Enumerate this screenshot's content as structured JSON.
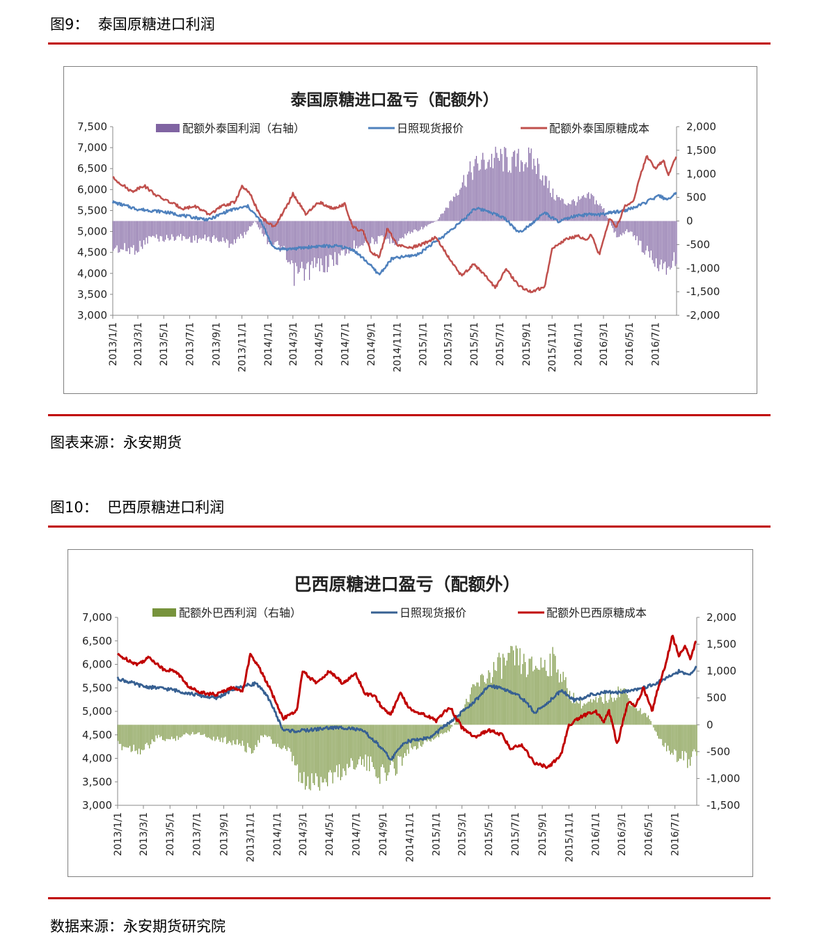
{
  "figure1": {
    "title": "图9：  泰国原糖进口利润",
    "source": "图表来源：永安期货"
  },
  "figure2": {
    "title": "图10：  巴西原糖进口利润",
    "source": "数据来源：永安期货研究院"
  },
  "chart_data": [
    {
      "type": "bar+line",
      "title": "泰国原糖进口盈亏（配额外）",
      "legend": [
        "配额外泰国利润（右轴）",
        "日照现货报价",
        "配额外泰国原糖成本"
      ],
      "legend_position": "top",
      "colors": {
        "bar": "#8064a2",
        "spot": "#4f81bd",
        "cost": "#c0504d"
      },
      "x_ticks": [
        "2013/1/1",
        "2013/3/1",
        "2013/5/1",
        "2013/7/1",
        "2013/9/1",
        "2013/11/1",
        "2014/1/1",
        "2014/3/1",
        "2014/5/1",
        "2014/7/1",
        "2014/9/1",
        "2014/11/1",
        "2015/1/1",
        "2015/3/1",
        "2015/5/1",
        "2015/7/1",
        "2015/9/1",
        "2015/11/1",
        "2016/1/1",
        "2016/3/1",
        "2016/5/1",
        "2016/7/1"
      ],
      "x_range": [
        "2013/1/1",
        "2016/8/20"
      ],
      "y_left": {
        "min": 3000,
        "max": 7500,
        "step": 500
      },
      "y_left_ticks": [
        "3,000",
        "3,500",
        "4,000",
        "4,500",
        "5,000",
        "5,500",
        "6,000",
        "6,500",
        "7,000",
        "7,500"
      ],
      "y_right": {
        "min": -2000,
        "max": 2000,
        "step": 500
      },
      "y_right_ticks": [
        "-2,000",
        "-1,500",
        "-1,000",
        "-500",
        "0",
        "500",
        "1,000",
        "1,500",
        "2,000"
      ],
      "spot": [
        [
          "2013/1/1",
          5700
        ],
        [
          "2013/3/1",
          5530
        ],
        [
          "2013/5/1",
          5470
        ],
        [
          "2013/7/1",
          5350
        ],
        [
          "2013/8/15",
          5280
        ],
        [
          "2013/10/1",
          5500
        ],
        [
          "2013/11/15",
          5600
        ],
        [
          "2013/12/15",
          5250
        ],
        [
          "2014/1/15",
          4600
        ],
        [
          "2014/2/15",
          4580
        ],
        [
          "2014/3/15",
          4600
        ],
        [
          "2014/5/1",
          4650
        ],
        [
          "2014/6/15",
          4650
        ],
        [
          "2014/7/20",
          4570
        ],
        [
          "2014/8/20",
          4300
        ],
        [
          "2014/9/20",
          3970
        ],
        [
          "2014/10/20",
          4350
        ],
        [
          "2014/11/20",
          4400
        ],
        [
          "2014/12/20",
          4450
        ],
        [
          "2015/1/15",
          4650
        ],
        [
          "2015/2/15",
          4860
        ],
        [
          "2015/3/15",
          5100
        ],
        [
          "2015/4/10",
          5300
        ],
        [
          "2015/5/1",
          5550
        ],
        [
          "2015/6/1",
          5500
        ],
        [
          "2015/7/15",
          5300
        ],
        [
          "2015/8/15",
          4970
        ],
        [
          "2015/9/15",
          5200
        ],
        [
          "2015/10/15",
          5450
        ],
        [
          "2015/11/15",
          5230
        ],
        [
          "2015/12/20",
          5350
        ],
        [
          "2016/1/20",
          5400
        ],
        [
          "2016/2/20",
          5400
        ],
        [
          "2016/3/20",
          5450
        ],
        [
          "2016/4/20",
          5500
        ],
        [
          "2016/5/20",
          5600
        ],
        [
          "2016/6/20",
          5750
        ],
        [
          "2016/7/10",
          5850
        ],
        [
          "2016/7/20",
          5800
        ],
        [
          "2016/8/1",
          5780
        ],
        [
          "2016/8/10",
          5800
        ],
        [
          "2016/8/20",
          5980
        ]
      ],
      "cost": [
        [
          "2013/1/1",
          6280
        ],
        [
          "2013/2/15",
          5950
        ],
        [
          "2013/3/15",
          6100
        ],
        [
          "2013/4/15",
          5850
        ],
        [
          "2013/5/15",
          5700
        ],
        [
          "2013/6/15",
          5550
        ],
        [
          "2013/7/15",
          5600
        ],
        [
          "2013/8/15",
          5400
        ],
        [
          "2013/9/15",
          5600
        ],
        [
          "2013/10/15",
          5700
        ],
        [
          "2013/11/1",
          6070
        ],
        [
          "2013/11/20",
          5900
        ],
        [
          "2013/12/15",
          5350
        ],
        [
          "2014/1/15",
          5100
        ],
        [
          "2014/2/15",
          5600
        ],
        [
          "2014/3/1",
          5900
        ],
        [
          "2014/4/1",
          5400
        ],
        [
          "2014/5/1",
          5700
        ],
        [
          "2014/6/1",
          5550
        ],
        [
          "2014/7/1",
          5650
        ],
        [
          "2014/7/20",
          5100
        ],
        [
          "2014/8/15",
          4980
        ],
        [
          "2014/9/1",
          4500
        ],
        [
          "2014/9/20",
          4370
        ],
        [
          "2014/10/10",
          5070
        ],
        [
          "2014/11/1",
          4680
        ],
        [
          "2014/12/1",
          4600
        ],
        [
          "2015/1/1",
          4700
        ],
        [
          "2015/2/1",
          4870
        ],
        [
          "2015/3/1",
          4400
        ],
        [
          "2015/4/1",
          3950
        ],
        [
          "2015/5/1",
          4220
        ],
        [
          "2015/6/1",
          3900
        ],
        [
          "2015/6/20",
          3650
        ],
        [
          "2015/7/15",
          4100
        ],
        [
          "2015/8/15",
          3700
        ],
        [
          "2015/9/15",
          3550
        ],
        [
          "2015/10/15",
          3700
        ],
        [
          "2015/11/1",
          4600
        ],
        [
          "2015/12/1",
          4800
        ],
        [
          "2016/1/1",
          4900
        ],
        [
          "2016/1/20",
          4800
        ],
        [
          "2016/2/1",
          4920
        ],
        [
          "2016/2/20",
          4450
        ],
        [
          "2016/3/15",
          5300
        ],
        [
          "2016/4/1",
          5100
        ],
        [
          "2016/4/20",
          5600
        ],
        [
          "2016/5/10",
          5700
        ],
        [
          "2016/5/20",
          6100
        ],
        [
          "2016/6/10",
          6800
        ],
        [
          "2016/7/1",
          6500
        ],
        [
          "2016/7/20",
          6700
        ],
        [
          "2016/8/1",
          6350
        ],
        [
          "2016/8/20",
          6800
        ]
      ],
      "bar": [
        [
          "2013/1/1",
          -600
        ],
        [
          "2013/2/1",
          -650
        ],
        [
          "2013/3/1",
          -600
        ],
        [
          "2013/4/1",
          -350
        ],
        [
          "2013/5/1",
          -400
        ],
        [
          "2013/6/1",
          -350
        ],
        [
          "2013/7/1",
          -400
        ],
        [
          "2013/8/1",
          -400
        ],
        [
          "2013/9/1",
          -400
        ],
        [
          "2013/10/1",
          -500
        ],
        [
          "2013/11/1",
          -350
        ],
        [
          "2013/12/1",
          0
        ],
        [
          "2014/1/1",
          -450
        ],
        [
          "2014/2/1",
          -600
        ],
        [
          "2014/3/1",
          -1200
        ],
        [
          "2014/4/1",
          -1100
        ],
        [
          "2014/5/1",
          -1000
        ],
        [
          "2014/6/1",
          -900
        ],
        [
          "2014/7/1",
          -700
        ],
        [
          "2014/8/1",
          -500
        ],
        [
          "2014/9/1",
          -450
        ],
        [
          "2014/10/1",
          -400
        ],
        [
          "2014/11/1",
          -450
        ],
        [
          "2014/12/1",
          -250
        ],
        [
          "2015/1/1",
          -150
        ],
        [
          "2015/2/1",
          0
        ],
        [
          "2015/3/1",
          350
        ],
        [
          "2015/4/1",
          850
        ],
        [
          "2015/5/1",
          1200
        ],
        [
          "2015/6/1",
          1350
        ],
        [
          "2015/7/1",
          1400
        ],
        [
          "2015/8/1",
          1300
        ],
        [
          "2015/9/1",
          1400
        ],
        [
          "2015/10/1",
          1200
        ],
        [
          "2015/11/1",
          600
        ],
        [
          "2015/12/1",
          400
        ],
        [
          "2016/1/1",
          450
        ],
        [
          "2016/2/1",
          550
        ],
        [
          "2016/3/1",
          250
        ],
        [
          "2016/4/1",
          -350
        ],
        [
          "2016/5/1",
          -200
        ],
        [
          "2016/6/1",
          -600
        ],
        [
          "2016/7/1",
          -900
        ],
        [
          "2016/8/1",
          -1000
        ],
        [
          "2016/8/20",
          -800
        ]
      ]
    },
    {
      "type": "bar+line",
      "title": "巴西原糖进口盈亏（配额外）",
      "legend": [
        "配额外巴西利润（右轴）",
        "日照现货报价",
        "配额外巴西原糖成本"
      ],
      "legend_position": "top",
      "colors": {
        "bar": "#77933c",
        "spot": "#376092",
        "cost": "#c00000"
      },
      "x_ticks": [
        "2013/1/1",
        "2013/3/1",
        "2013/5/1",
        "2013/7/1",
        "2013/9/1",
        "2013/11/1",
        "2014/1/1",
        "2014/3/1",
        "2014/5/1",
        "2014/7/1",
        "2014/9/1",
        "2014/11/1",
        "2015/1/1",
        "2015/3/1",
        "2015/5/1",
        "2015/7/1",
        "2015/9/1",
        "2015/11/1",
        "2016/1/1",
        "2016/3/1",
        "2016/5/1",
        "2016/7/1"
      ],
      "x_range": [
        "2013/1/1",
        "2016/8/20"
      ],
      "y_left": {
        "min": 3000,
        "max": 7000,
        "step": 500
      },
      "y_left_ticks": [
        "3,000",
        "3,500",
        "4,000",
        "4,500",
        "5,000",
        "5,500",
        "6,000",
        "6,500",
        "7,000"
      ],
      "y_right": {
        "min": -1500,
        "max": 2000,
        "step": 500
      },
      "y_right_ticks": [
        "-1,500",
        "-1,000",
        "-500",
        "0",
        "500",
        "1,000",
        "1,500",
        "2,000"
      ],
      "spot": [
        [
          "2013/1/1",
          5700
        ],
        [
          "2013/3/1",
          5530
        ],
        [
          "2013/5/1",
          5470
        ],
        [
          "2013/7/1",
          5350
        ],
        [
          "2013/8/15",
          5280
        ],
        [
          "2013/10/1",
          5500
        ],
        [
          "2013/11/15",
          5600
        ],
        [
          "2013/12/15",
          5250
        ],
        [
          "2014/1/15",
          4600
        ],
        [
          "2014/2/15",
          4580
        ],
        [
          "2014/3/15",
          4600
        ],
        [
          "2014/5/1",
          4650
        ],
        [
          "2014/6/15",
          4650
        ],
        [
          "2014/7/20",
          4570
        ],
        [
          "2014/8/20",
          4300
        ],
        [
          "2014/9/20",
          3970
        ],
        [
          "2014/10/20",
          4350
        ],
        [
          "2014/11/20",
          4400
        ],
        [
          "2014/12/20",
          4450
        ],
        [
          "2015/1/15",
          4650
        ],
        [
          "2015/2/15",
          4860
        ],
        [
          "2015/3/15",
          5100
        ],
        [
          "2015/4/10",
          5300
        ],
        [
          "2015/5/1",
          5550
        ],
        [
          "2015/6/1",
          5500
        ],
        [
          "2015/7/15",
          5300
        ],
        [
          "2015/8/15",
          4970
        ],
        [
          "2015/9/15",
          5200
        ],
        [
          "2015/10/15",
          5450
        ],
        [
          "2015/11/15",
          5230
        ],
        [
          "2015/12/20",
          5350
        ],
        [
          "2016/1/20",
          5400
        ],
        [
          "2016/2/20",
          5400
        ],
        [
          "2016/3/20",
          5450
        ],
        [
          "2016/4/20",
          5500
        ],
        [
          "2016/5/20",
          5600
        ],
        [
          "2016/6/20",
          5750
        ],
        [
          "2016/7/10",
          5850
        ],
        [
          "2016/7/20",
          5800
        ],
        [
          "2016/8/1",
          5780
        ],
        [
          "2016/8/10",
          5800
        ],
        [
          "2016/8/20",
          5980
        ]
      ],
      "cost": [
        [
          "2013/1/1",
          6200
        ],
        [
          "2013/2/15",
          6000
        ],
        [
          "2013/3/15",
          6150
        ],
        [
          "2013/4/15",
          5900
        ],
        [
          "2013/5/15",
          5850
        ],
        [
          "2013/6/15",
          5500
        ],
        [
          "2013/7/15",
          5400
        ],
        [
          "2013/8/15",
          5350
        ],
        [
          "2013/9/15",
          5500
        ],
        [
          "2013/10/15",
          5450
        ],
        [
          "2013/11/1",
          6200
        ],
        [
          "2013/11/20",
          5950
        ],
        [
          "2013/12/15",
          5500
        ],
        [
          "2014/1/15",
          4850
        ],
        [
          "2014/2/15",
          5000
        ],
        [
          "2014/3/1",
          5850
        ],
        [
          "2014/4/1",
          5600
        ],
        [
          "2014/5/1",
          5850
        ],
        [
          "2014/6/1",
          5600
        ],
        [
          "2014/7/1",
          5800
        ],
        [
          "2014/7/20",
          5400
        ],
        [
          "2014/8/15",
          5300
        ],
        [
          "2014/9/1",
          5050
        ],
        [
          "2014/9/20",
          4950
        ],
        [
          "2014/10/10",
          5400
        ],
        [
          "2014/11/1",
          5050
        ],
        [
          "2014/12/1",
          4950
        ],
        [
          "2015/1/1",
          4800
        ],
        [
          "2015/2/1",
          5100
        ],
        [
          "2015/3/1",
          4650
        ],
        [
          "2015/4/1",
          4450
        ],
        [
          "2015/5/1",
          4600
        ],
        [
          "2015/6/1",
          4500
        ],
        [
          "2015/6/20",
          4200
        ],
        [
          "2015/7/15",
          4300
        ],
        [
          "2015/8/15",
          3900
        ],
        [
          "2015/9/15",
          3800
        ],
        [
          "2015/10/15",
          4100
        ],
        [
          "2015/11/1",
          4700
        ],
        [
          "2015/12/1",
          4900
        ],
        [
          "2016/1/1",
          5000
        ],
        [
          "2016/1/20",
          4800
        ],
        [
          "2016/2/1",
          5000
        ],
        [
          "2016/2/20",
          4300
        ],
        [
          "2016/3/15",
          5200
        ],
        [
          "2016/4/1",
          5100
        ],
        [
          "2016/4/20",
          5500
        ],
        [
          "2016/5/10",
          5000
        ],
        [
          "2016/5/20",
          5400
        ],
        [
          "2016/6/10",
          6000
        ],
        [
          "2016/6/25",
          6600
        ],
        [
          "2016/7/10",
          6200
        ],
        [
          "2016/7/25",
          6400
        ],
        [
          "2016/8/5",
          6100
        ],
        [
          "2016/8/20",
          6550
        ]
      ],
      "bar": [
        [
          "2013/1/1",
          -400
        ],
        [
          "2013/2/1",
          -450
        ],
        [
          "2013/3/1",
          -500
        ],
        [
          "2013/4/1",
          -250
        ],
        [
          "2013/5/1",
          -300
        ],
        [
          "2013/6/1",
          -200
        ],
        [
          "2013/7/1",
          -150
        ],
        [
          "2013/8/1",
          -250
        ],
        [
          "2013/9/1",
          -300
        ],
        [
          "2013/10/1",
          -350
        ],
        [
          "2013/11/1",
          -500
        ],
        [
          "2013/12/1",
          -200
        ],
        [
          "2014/1/1",
          -400
        ],
        [
          "2014/2/1",
          -600
        ],
        [
          "2014/3/1",
          -1200
        ],
        [
          "2014/4/1",
          -1100
        ],
        [
          "2014/5/1",
          -1000
        ],
        [
          "2014/6/1",
          -900
        ],
        [
          "2014/7/1",
          -700
        ],
        [
          "2014/8/1",
          -800
        ],
        [
          "2014/9/1",
          -1000
        ],
        [
          "2014/10/1",
          -800
        ],
        [
          "2014/11/1",
          -450
        ],
        [
          "2014/12/1",
          -350
        ],
        [
          "2015/1/1",
          -250
        ],
        [
          "2015/2/1",
          -100
        ],
        [
          "2015/3/1",
          300
        ],
        [
          "2015/4/1",
          750
        ],
        [
          "2015/5/1",
          1000
        ],
        [
          "2015/6/1",
          1200
        ],
        [
          "2015/7/1",
          1300
        ],
        [
          "2015/8/1",
          1100
        ],
        [
          "2015/9/1",
          1200
        ],
        [
          "2015/10/1",
          1250
        ],
        [
          "2015/11/1",
          600
        ],
        [
          "2015/12/1",
          400
        ],
        [
          "2016/1/1",
          450
        ],
        [
          "2016/2/1",
          550
        ],
        [
          "2016/3/1",
          700
        ],
        [
          "2016/4/1",
          350
        ],
        [
          "2016/5/1",
          150
        ],
        [
          "2016/6/1",
          -400
        ],
        [
          "2016/7/1",
          -600
        ],
        [
          "2016/8/1",
          -700
        ],
        [
          "2016/8/20",
          -500
        ]
      ]
    }
  ]
}
